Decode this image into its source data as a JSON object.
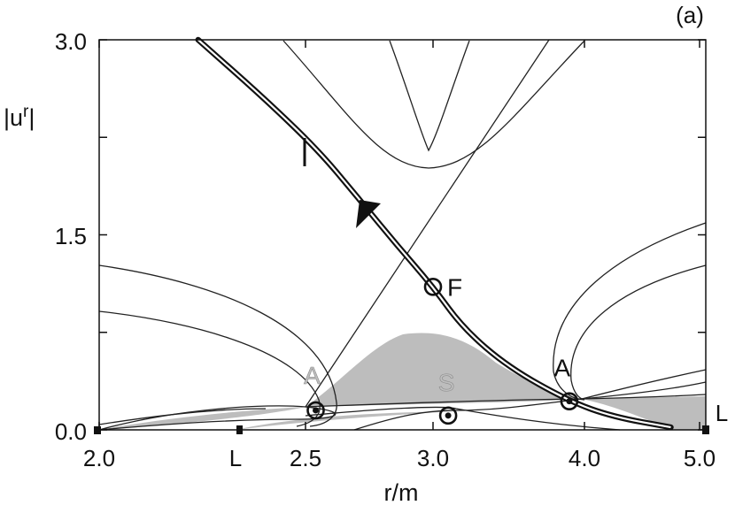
{
  "chart_data": {
    "type": "line",
    "panel_label": "(a)",
    "xlabel": "r/m",
    "ylabel": "|u^r|",
    "ylabel_base": "|u",
    "ylabel_sup": "r",
    "ylabel_close": "|",
    "xlim": [
      2.0,
      5.0
    ],
    "ylim": [
      0.0,
      3.0
    ],
    "x_scale": "piecewise (ticks printed at 2.0, 2.5, 3.0, 4.0, 5.0)",
    "x_ticks": [
      "2.0",
      "2.5",
      "3.0",
      "4.0",
      "5.0"
    ],
    "y_ticks": [
      "0.0",
      "1.5",
      "3.0"
    ],
    "axis_marker_label": "L",
    "right_marker_label": "L",
    "grid": false,
    "critical_points": [
      {
        "label": "F",
        "x": 3.0,
        "y": 1.1
      },
      {
        "label": "A",
        "x": 3.9,
        "y": 0.22
      },
      {
        "label": "A",
        "x": 2.54,
        "y": 0.15,
        "shade": "light"
      },
      {
        "label": "S",
        "x": 3.1,
        "y": 0.11,
        "shade": "light"
      }
    ],
    "series": [
      {
        "style": "thick",
        "points": [
          [
            2.24,
            3.0
          ],
          [
            2.4,
            2.55
          ],
          [
            2.55,
            2.15
          ],
          [
            2.7,
            1.8
          ],
          [
            2.85,
            1.44
          ],
          [
            3.0,
            1.1
          ],
          [
            3.2,
            0.78
          ],
          [
            3.5,
            0.48
          ],
          [
            3.9,
            0.22
          ],
          [
            4.25,
            0.1
          ],
          [
            4.75,
            0.02
          ]
        ]
      }
    ]
  }
}
